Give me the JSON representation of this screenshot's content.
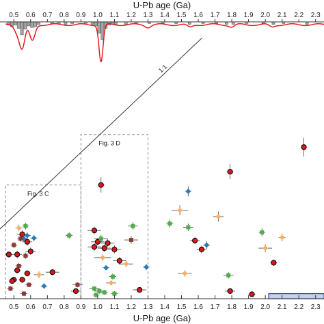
{
  "chart_data": {
    "type": "scatter",
    "title": "",
    "xlabel": "U-Pb age (Ga)",
    "xlabel_top": "U-Pb age (Ga)",
    "ylabel": "",
    "xlim": [
      0.45,
      2.35
    ],
    "ylim": [
      0,
      3.3
    ],
    "x_ticks": [
      "0.5",
      "0.6",
      "0.7",
      "0.8",
      "0.9",
      "1.0",
      "1.1",
      "1.2",
      "1.3",
      "1.4",
      "1.5",
      "1.6",
      "1.7",
      "1.8",
      "1.9",
      "2.0",
      "2.1",
      "2.2",
      "2.3"
    ],
    "grid": false,
    "histogram": {
      "bin_width": 0.02,
      "bins": [
        [
          0.46,
          0.4
        ],
        [
          0.48,
          0.6
        ],
        [
          0.5,
          0.4
        ],
        [
          0.52,
          0.8
        ],
        [
          0.54,
          1.6
        ],
        [
          0.56,
          0.9
        ],
        [
          0.58,
          0.5
        ],
        [
          0.6,
          0.7
        ],
        [
          0.62,
          0.6
        ],
        [
          0.64,
          0.3
        ],
        [
          0.72,
          0.2
        ],
        [
          0.76,
          0.3
        ],
        [
          0.8,
          0.3
        ],
        [
          0.84,
          0.2
        ],
        [
          0.92,
          0.3
        ],
        [
          0.96,
          0.3
        ],
        [
          0.98,
          0.5
        ],
        [
          1.0,
          1.4
        ],
        [
          1.02,
          2.2
        ],
        [
          1.04,
          0.8
        ],
        [
          1.06,
          0.4
        ],
        [
          1.08,
          0.3
        ],
        [
          1.1,
          0.3
        ],
        [
          1.16,
          0.3
        ],
        [
          1.22,
          0.2
        ],
        [
          1.3,
          0.2
        ],
        [
          1.38,
          0.2
        ],
        [
          1.46,
          0.2
        ],
        [
          1.54,
          0.3
        ],
        [
          1.62,
          0.2
        ],
        [
          1.7,
          0.2
        ],
        [
          1.76,
          0.3
        ],
        [
          1.8,
          0.3
        ],
        [
          1.88,
          0.2
        ],
        [
          1.98,
          0.2
        ],
        [
          2.04,
          0.3
        ],
        [
          2.1,
          0.2
        ],
        [
          2.24,
          0.3
        ]
      ],
      "kde_peaks": [
        [
          0.55,
          1.0
        ],
        [
          0.61,
          0.7
        ],
        [
          1.02,
          1.6
        ],
        [
          0.52,
          0.3
        ],
        [
          1.3,
          0.1
        ],
        [
          1.55,
          0.12
        ],
        [
          1.8,
          0.1
        ],
        [
          2.04,
          0.1
        ]
      ]
    },
    "reference_line": {
      "label": "1:1",
      "x": [
        0.45,
        1.5
      ],
      "y": [
        0.45,
        3.3
      ]
    },
    "boxes": [
      {
        "label": "Fig. 3 D",
        "x": [
          0.9,
          1.3
        ],
        "y": [
          0,
          2.6
        ]
      },
      {
        "label": "Fig. 3 C",
        "x": [
          0.45,
          0.9
        ],
        "y": [
          0,
          1.8
        ]
      }
    ],
    "series": [
      {
        "color": "#d7191c",
        "marker": "circle",
        "points": [
          [
            0.5,
            0.3,
            0.02,
            0.05
          ],
          [
            0.52,
            0.45,
            0.02,
            0.05
          ],
          [
            0.55,
            0.3,
            0.02,
            0.05
          ],
          [
            0.58,
            0.4,
            0.02,
            0.05
          ],
          [
            0.47,
            0.7,
            0.02,
            0.05
          ],
          [
            0.55,
            1.02,
            0.03,
            0.06
          ],
          [
            0.58,
            0.9,
            0.03,
            0.06
          ],
          [
            0.6,
            0.75,
            0.03,
            0.06
          ],
          [
            0.52,
            0.7,
            0.03,
            0.06
          ],
          [
            0.49,
            0.28,
            0.02,
            0.04
          ],
          [
            0.73,
            0.42,
            0.04,
            0.05
          ],
          [
            0.87,
            0.12,
            0.03,
            0.04
          ],
          [
            1.02,
            1.8,
            0.02,
            0.12
          ],
          [
            0.98,
            1.08,
            0.04,
            0.06
          ],
          [
            1.0,
            0.9,
            0.04,
            0.06
          ],
          [
            0.98,
            0.82,
            0.04,
            0.06
          ],
          [
            1.06,
            0.88,
            0.04,
            0.06
          ],
          [
            1.04,
            0.8,
            0.04,
            0.06
          ],
          [
            1.1,
            0.78,
            0.04,
            0.06
          ],
          [
            1.13,
            0.6,
            0.04,
            0.06
          ],
          [
            1.25,
            0.14,
            0.04,
            0.04
          ],
          [
            1.62,
            0.78,
            0.03,
            0.06
          ],
          [
            1.58,
            0.92,
            0.03,
            0.06
          ],
          [
            1.79,
            2.01,
            0.02,
            0.12
          ],
          [
            2.23,
            2.4,
            0.01,
            0.15
          ],
          [
            2.05,
            0.57,
            0.02,
            0.05
          ],
          [
            1.79,
            0.12,
            0.03,
            0.04
          ],
          [
            1.92,
            0.07,
            0.02,
            0.04
          ]
        ]
      },
      {
        "color": "#fdae61",
        "marker": "diamond",
        "points": [
          [
            0.53,
            1.12,
            0.02,
            0.05
          ],
          [
            0.65,
            0.38,
            0.03,
            0.05
          ],
          [
            1.03,
            0.65,
            0.05,
            0.05
          ],
          [
            1.17,
            0.55,
            0.04,
            0.05
          ],
          [
            1.08,
            0.25,
            0.03,
            0.04
          ],
          [
            1.49,
            1.4,
            0.05,
            0.08
          ],
          [
            1.72,
            1.3,
            0.03,
            0.08
          ],
          [
            1.52,
            0.4,
            0.04,
            0.05
          ],
          [
            2.0,
            0.8,
            0.04,
            0.06
          ],
          [
            2.1,
            0.97,
            0.02,
            0.06
          ]
        ]
      },
      {
        "color": "#4daf4a",
        "marker": "square",
        "points": [
          [
            0.57,
            1.15,
            0.02,
            0.05
          ],
          [
            0.83,
            1.0,
            0.02,
            0.05
          ],
          [
            1.02,
            0.95,
            0.04,
            0.06
          ],
          [
            1.21,
            1.15,
            0.03,
            0.06
          ],
          [
            1.43,
            1.19,
            0.02,
            0.06
          ],
          [
            1.54,
            1.13,
            0.03,
            0.06
          ],
          [
            1.98,
            1.05,
            0.02,
            0.06
          ],
          [
            1.78,
            0.37,
            0.03,
            0.05
          ],
          [
            1.09,
            0.35,
            0.02,
            0.05
          ],
          [
            0.98,
            0.16,
            0.03,
            0.04
          ],
          [
            1.01,
            0.12,
            0.03,
            0.04
          ],
          [
            1.04,
            0.1,
            0.02,
            0.04
          ],
          [
            0.99,
            0.06,
            0.02,
            0.04
          ],
          [
            1.1,
            0.08,
            0.02,
            0.04
          ]
        ]
      },
      {
        "color": "#2c7bb6",
        "marker": "diamond",
        "points": [
          [
            0.58,
            1.0,
            0.02,
            0.05
          ],
          [
            0.62,
            0.96,
            0.02,
            0.05
          ],
          [
            0.56,
            0.95,
            0.02,
            0.05
          ],
          [
            1.54,
            1.7,
            0.02,
            0.08
          ],
          [
            1.65,
            0.85,
            0.02,
            0.06
          ],
          [
            1.29,
            0.5,
            0.02,
            0.05
          ],
          [
            0.68,
            0.2,
            0.02,
            0.04
          ],
          [
            1.05,
            0.49,
            0.02,
            0.04
          ]
        ]
      },
      {
        "color": "#8c3a3a",
        "marker": "square",
        "points": [
          [
            0.5,
            0.85,
            0.02,
            0.05
          ],
          [
            0.54,
            0.95,
            0.02,
            0.05
          ],
          [
            0.57,
            0.68,
            0.02,
            0.05
          ],
          [
            0.53,
            0.52,
            0.02,
            0.05
          ],
          [
            0.48,
            0.16,
            0.02,
            0.04
          ],
          [
            0.59,
            0.22,
            0.02,
            0.04
          ],
          [
            0.88,
            0.22,
            0.03,
            0.04
          ],
          [
            1.2,
            0.93,
            0.04,
            0.06
          ],
          [
            0.56,
            0.08,
            0.02,
            0.04
          ]
        ]
      }
    ],
    "inset_bar": {
      "color": "#2c3e99",
      "x": [
        2.02,
        2.35
      ],
      "y": [
        0.0,
        0.08
      ]
    }
  }
}
